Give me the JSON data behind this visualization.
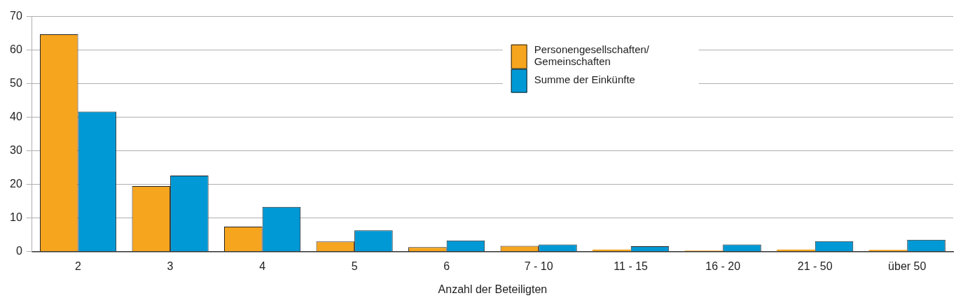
{
  "chart_data": {
    "type": "bar",
    "xlabel": "Anzahl der Beteiligten",
    "categories": [
      "2",
      "3",
      "4",
      "5",
      "6",
      "7 - 10",
      "11 - 15",
      "16 - 20",
      "21 - 50",
      "über 50"
    ],
    "series": [
      {
        "name": "Personengesellschaften/ Gemeinschaften",
        "color": "#f6a51e",
        "values": [
          64.7,
          19.5,
          7.4,
          3.0,
          1.3,
          1.7,
          0.6,
          0.3,
          0.6,
          0.5
        ]
      },
      {
        "name": "Summe der Einkünfte",
        "color": "#0099d6",
        "values": [
          41.7,
          22.6,
          13.3,
          6.3,
          3.3,
          2.1,
          1.6,
          2.1,
          3.1,
          3.5
        ]
      }
    ],
    "ylim": [
      0,
      70
    ],
    "yticks": [
      0,
      10,
      20,
      30,
      40,
      50,
      60,
      70
    ],
    "grid": "y",
    "legend": "top"
  }
}
